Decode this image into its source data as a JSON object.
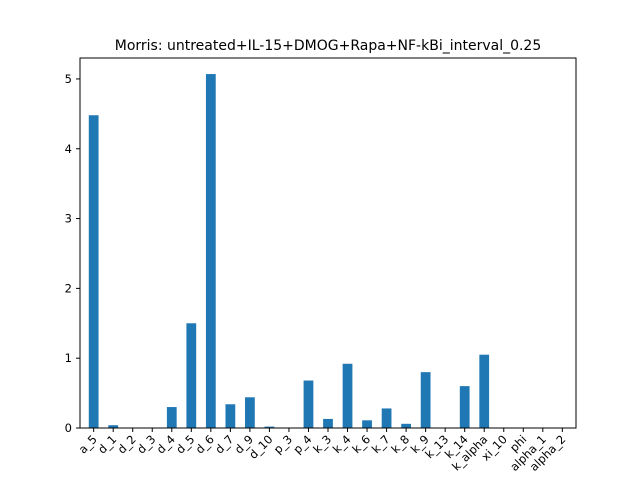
{
  "chart_data": {
    "type": "bar",
    "title": "Morris: untreated+IL-15+DMOG+Rapa+NF-kBi_interval_0.25",
    "xlabel": "",
    "ylabel": "",
    "ylim": [
      0,
      5.3
    ],
    "yticks": [
      0,
      1,
      2,
      3,
      4,
      5
    ],
    "grid": false,
    "bar_color": "#1f77b4",
    "categories": [
      "a_5",
      "d_1",
      "d_2",
      "d_3",
      "d_4",
      "d_5",
      "d_6",
      "d_7",
      "d_9",
      "d_10",
      "p_3",
      "p_4",
      "k_3",
      "k_4",
      "k_6",
      "k_7",
      "k_8",
      "k_9",
      "k_13",
      "k_14",
      "k_alpha",
      "xi_10",
      "phi",
      "alpha_1",
      "alpha_2"
    ],
    "values": [
      4.48,
      0.04,
      0.0,
      0.0,
      0.3,
      1.5,
      5.07,
      0.34,
      0.44,
      0.02,
      0.0,
      0.68,
      0.13,
      0.92,
      0.11,
      0.28,
      0.06,
      0.8,
      0.0,
      0.6,
      1.05,
      0.0,
      0.0,
      0.0,
      0.0
    ]
  }
}
